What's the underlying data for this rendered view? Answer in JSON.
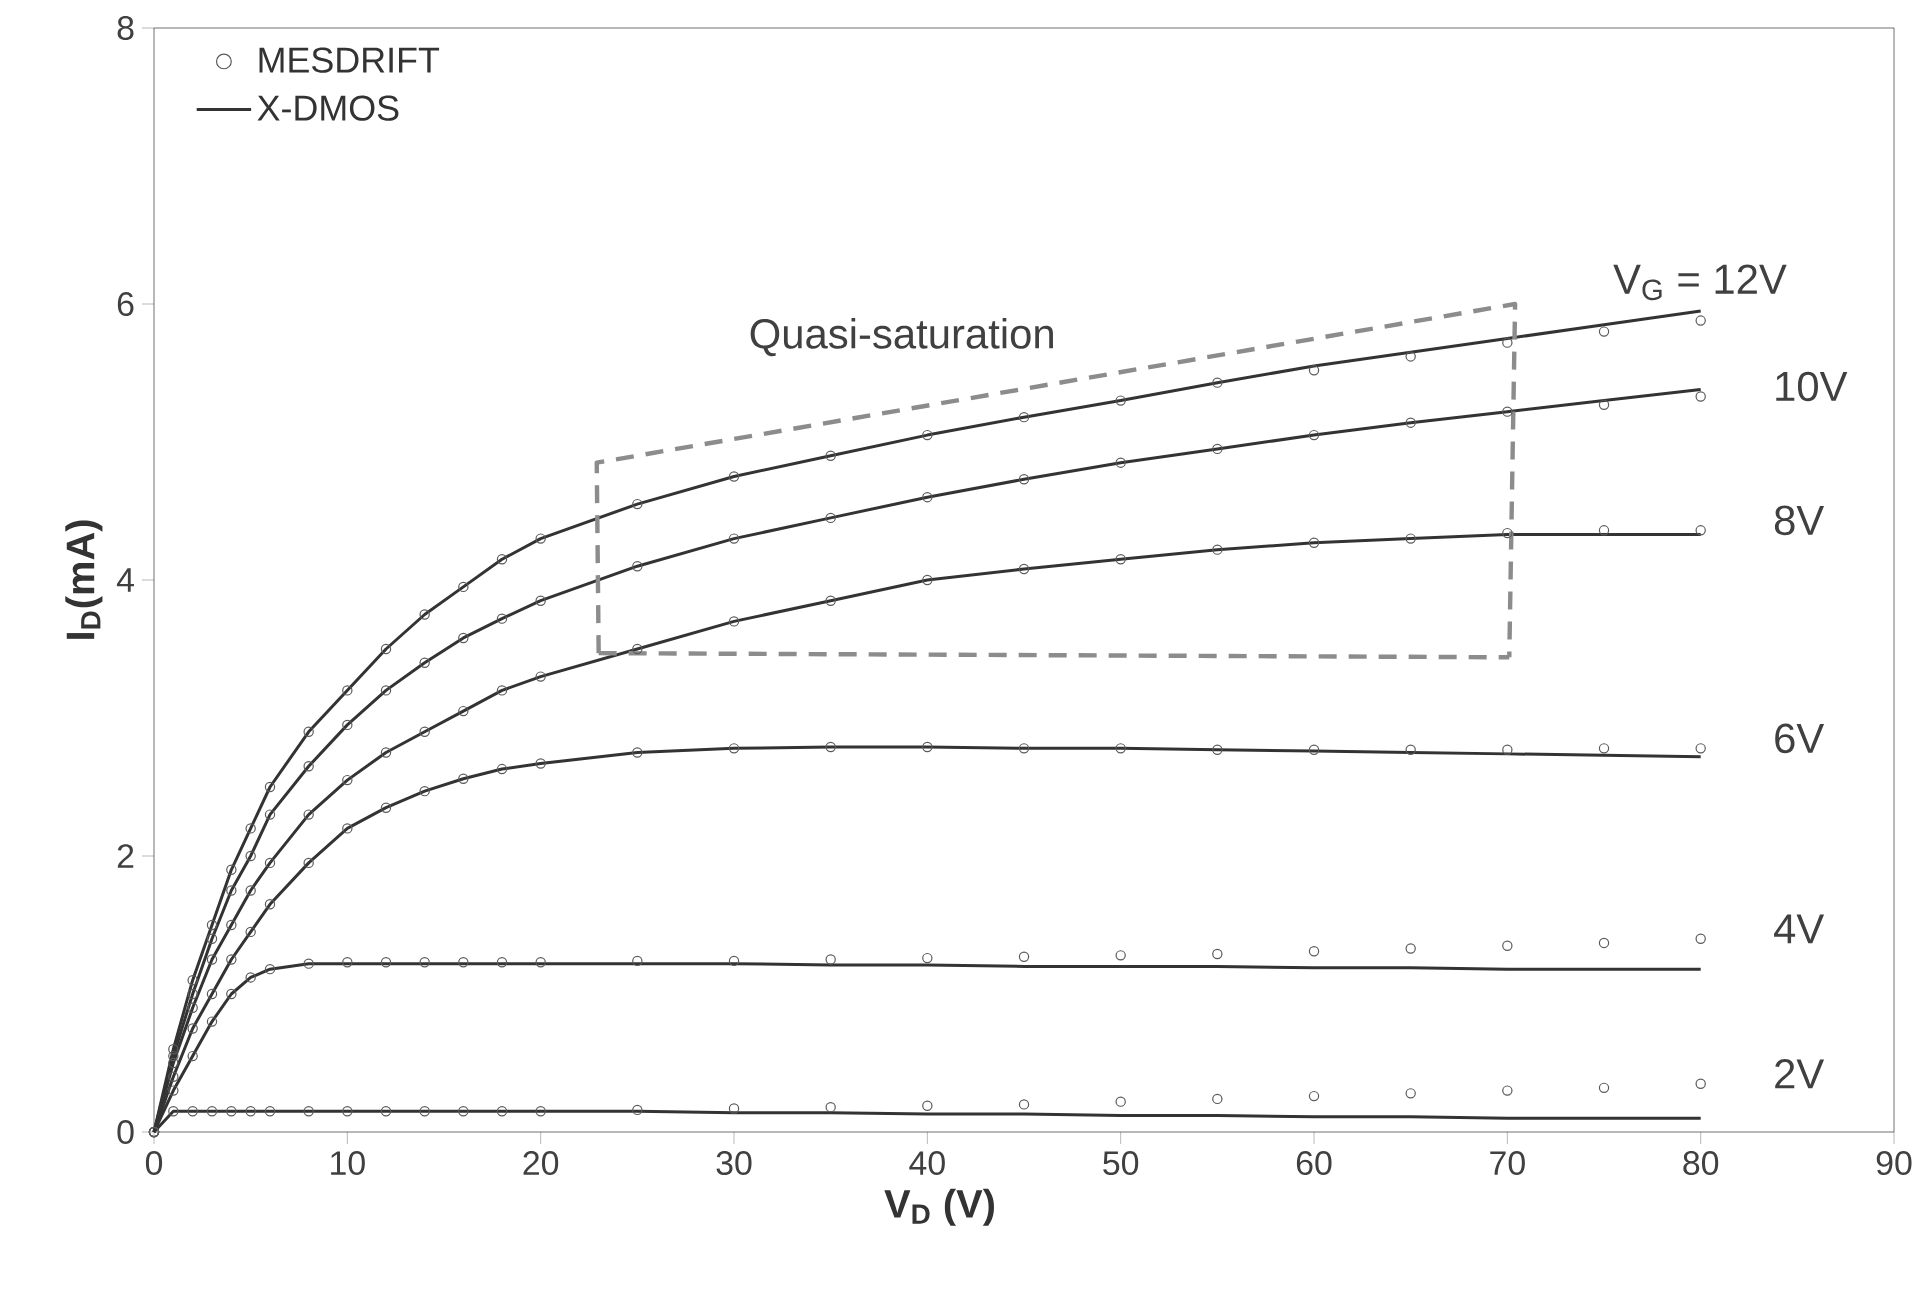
{
  "chart_data": {
    "type": "scatter",
    "xlabel": "V$_{D}$ (V)",
    "ylabel": "I$_{D}$(mA)",
    "x": [
      0,
      1,
      2,
      3,
      4,
      5,
      6,
      8,
      10,
      12,
      14,
      16,
      18,
      20,
      25,
      30,
      35,
      40,
      45,
      50,
      55,
      60,
      65,
      70,
      75,
      80
    ],
    "xlim": [
      0,
      90
    ],
    "ylim": [
      0,
      8
    ],
    "xticks": [
      0,
      10,
      20,
      30,
      40,
      50,
      60,
      70,
      80,
      90
    ],
    "yticks": [
      0,
      2,
      4,
      6,
      8
    ],
    "line_style": "solid",
    "legend": "top left",
    "series": [
      {
        "name": "MESDRIFT",
        "marker": "circle",
        "color": "#5a5a5a",
        "values": [
          0,
          0.6,
          1.1,
          1.5,
          1.9,
          2.2,
          2.5,
          2.9,
          3.2,
          3.5,
          3.75,
          3.95,
          4.15,
          4.3,
          4.55,
          4.75,
          4.9,
          5.05,
          5.18,
          5.3,
          5.43,
          5.52,
          5.62,
          5.72,
          5.8,
          5.88
        ]
      },
      {
        "marker": "circle",
        "color": "#5a5a5a",
        "values": [
          0,
          0.55,
          1.0,
          1.4,
          1.75,
          2.0,
          2.3,
          2.65,
          2.95,
          3.2,
          3.4,
          3.58,
          3.72,
          3.85,
          4.1,
          4.3,
          4.45,
          4.6,
          4.73,
          4.85,
          4.95,
          5.05,
          5.14,
          5.22,
          5.27,
          5.33
        ]
      },
      {
        "marker": "circle",
        "color": "#5a5a5a",
        "values": [
          0,
          0.5,
          0.9,
          1.25,
          1.5,
          1.75,
          1.95,
          2.3,
          2.55,
          2.75,
          2.9,
          3.05,
          3.2,
          3.3,
          3.5,
          3.7,
          3.85,
          4.0,
          4.08,
          4.15,
          4.22,
          4.27,
          4.3,
          4.34,
          4.36,
          4.36
        ]
      },
      {
        "marker": "circle",
        "color": "#5a5a5a",
        "values": [
          0,
          0.4,
          0.75,
          1.0,
          1.25,
          1.45,
          1.65,
          1.95,
          2.2,
          2.35,
          2.47,
          2.56,
          2.63,
          2.67,
          2.75,
          2.78,
          2.79,
          2.79,
          2.78,
          2.78,
          2.77,
          2.77,
          2.77,
          2.77,
          2.78,
          2.78
        ]
      },
      {
        "marker": "circle",
        "color": "#5a5a5a",
        "values": [
          0,
          0.3,
          0.55,
          0.8,
          1.0,
          1.12,
          1.18,
          1.22,
          1.23,
          1.23,
          1.23,
          1.23,
          1.23,
          1.23,
          1.24,
          1.24,
          1.25,
          1.26,
          1.27,
          1.28,
          1.29,
          1.31,
          1.33,
          1.35,
          1.37,
          1.4
        ]
      },
      {
        "marker": "circle",
        "color": "#5a5a5a",
        "values": [
          0,
          0.15,
          0.15,
          0.15,
          0.15,
          0.15,
          0.15,
          0.15,
          0.15,
          0.15,
          0.15,
          0.15,
          0.15,
          0.15,
          0.16,
          0.17,
          0.18,
          0.19,
          0.2,
          0.22,
          0.24,
          0.26,
          0.28,
          0.3,
          0.32,
          0.35
        ]
      },
      {
        "name": "X-DMOS",
        "type": "line",
        "color": "#333333",
        "values": [
          0,
          0.6,
          1.1,
          1.5,
          1.9,
          2.2,
          2.5,
          2.9,
          3.2,
          3.5,
          3.75,
          3.95,
          4.15,
          4.3,
          4.55,
          4.75,
          4.9,
          5.05,
          5.18,
          5.3,
          5.43,
          5.55,
          5.65,
          5.75,
          5.85,
          5.95
        ]
      },
      {
        "type": "line",
        "color": "#333333",
        "values": [
          0,
          0.55,
          1.0,
          1.4,
          1.75,
          2.0,
          2.3,
          2.65,
          2.95,
          3.2,
          3.4,
          3.58,
          3.72,
          3.85,
          4.1,
          4.3,
          4.45,
          4.6,
          4.73,
          4.85,
          4.95,
          5.05,
          5.14,
          5.22,
          5.3,
          5.38
        ]
      },
      {
        "type": "line",
        "color": "#333333",
        "values": [
          0,
          0.5,
          0.9,
          1.25,
          1.5,
          1.75,
          1.95,
          2.3,
          2.55,
          2.75,
          2.9,
          3.05,
          3.2,
          3.3,
          3.5,
          3.7,
          3.85,
          4.0,
          4.08,
          4.15,
          4.22,
          4.27,
          4.3,
          4.33,
          4.33,
          4.33
        ]
      },
      {
        "type": "line",
        "color": "#333333",
        "values": [
          0,
          0.4,
          0.75,
          1.0,
          1.25,
          1.45,
          1.65,
          1.95,
          2.2,
          2.35,
          2.47,
          2.56,
          2.63,
          2.67,
          2.75,
          2.78,
          2.79,
          2.79,
          2.78,
          2.78,
          2.77,
          2.76,
          2.75,
          2.74,
          2.73,
          2.72
        ]
      },
      {
        "type": "line",
        "color": "#333333",
        "values": [
          0,
          0.3,
          0.55,
          0.8,
          1.0,
          1.12,
          1.18,
          1.22,
          1.22,
          1.22,
          1.22,
          1.22,
          1.22,
          1.22,
          1.22,
          1.22,
          1.21,
          1.21,
          1.2,
          1.2,
          1.2,
          1.19,
          1.19,
          1.18,
          1.18,
          1.18
        ]
      },
      {
        "type": "line",
        "color": "#333333",
        "values": [
          0,
          0.15,
          0.15,
          0.15,
          0.15,
          0.15,
          0.15,
          0.15,
          0.15,
          0.15,
          0.15,
          0.15,
          0.15,
          0.15,
          0.15,
          0.14,
          0.14,
          0.13,
          0.13,
          0.12,
          0.12,
          0.11,
          0.11,
          0.1,
          0.1,
          0.1
        ]
      },
      {
        "type": "line",
        "color": "#8c8c8c",
        "line_style": "dashed",
        "x": [
          23.0,
          22.9,
          70.4,
          70.1
        ],
        "values": [
          3.47,
          4.85,
          6.0,
          3.44
        ]
      },
      {
        "type": "line",
        "color": "#8c8c8c",
        "line_style": "dashed",
        "x": [
          23.0,
          70.1
        ],
        "values": [
          3.47,
          3.44
        ]
      }
    ],
    "annotations": [
      "V$_{G}$ = 12V",
      "10V",
      "8V",
      "6V",
      "4V",
      "2V",
      "Quasi-saturation"
    ]
  }
}
